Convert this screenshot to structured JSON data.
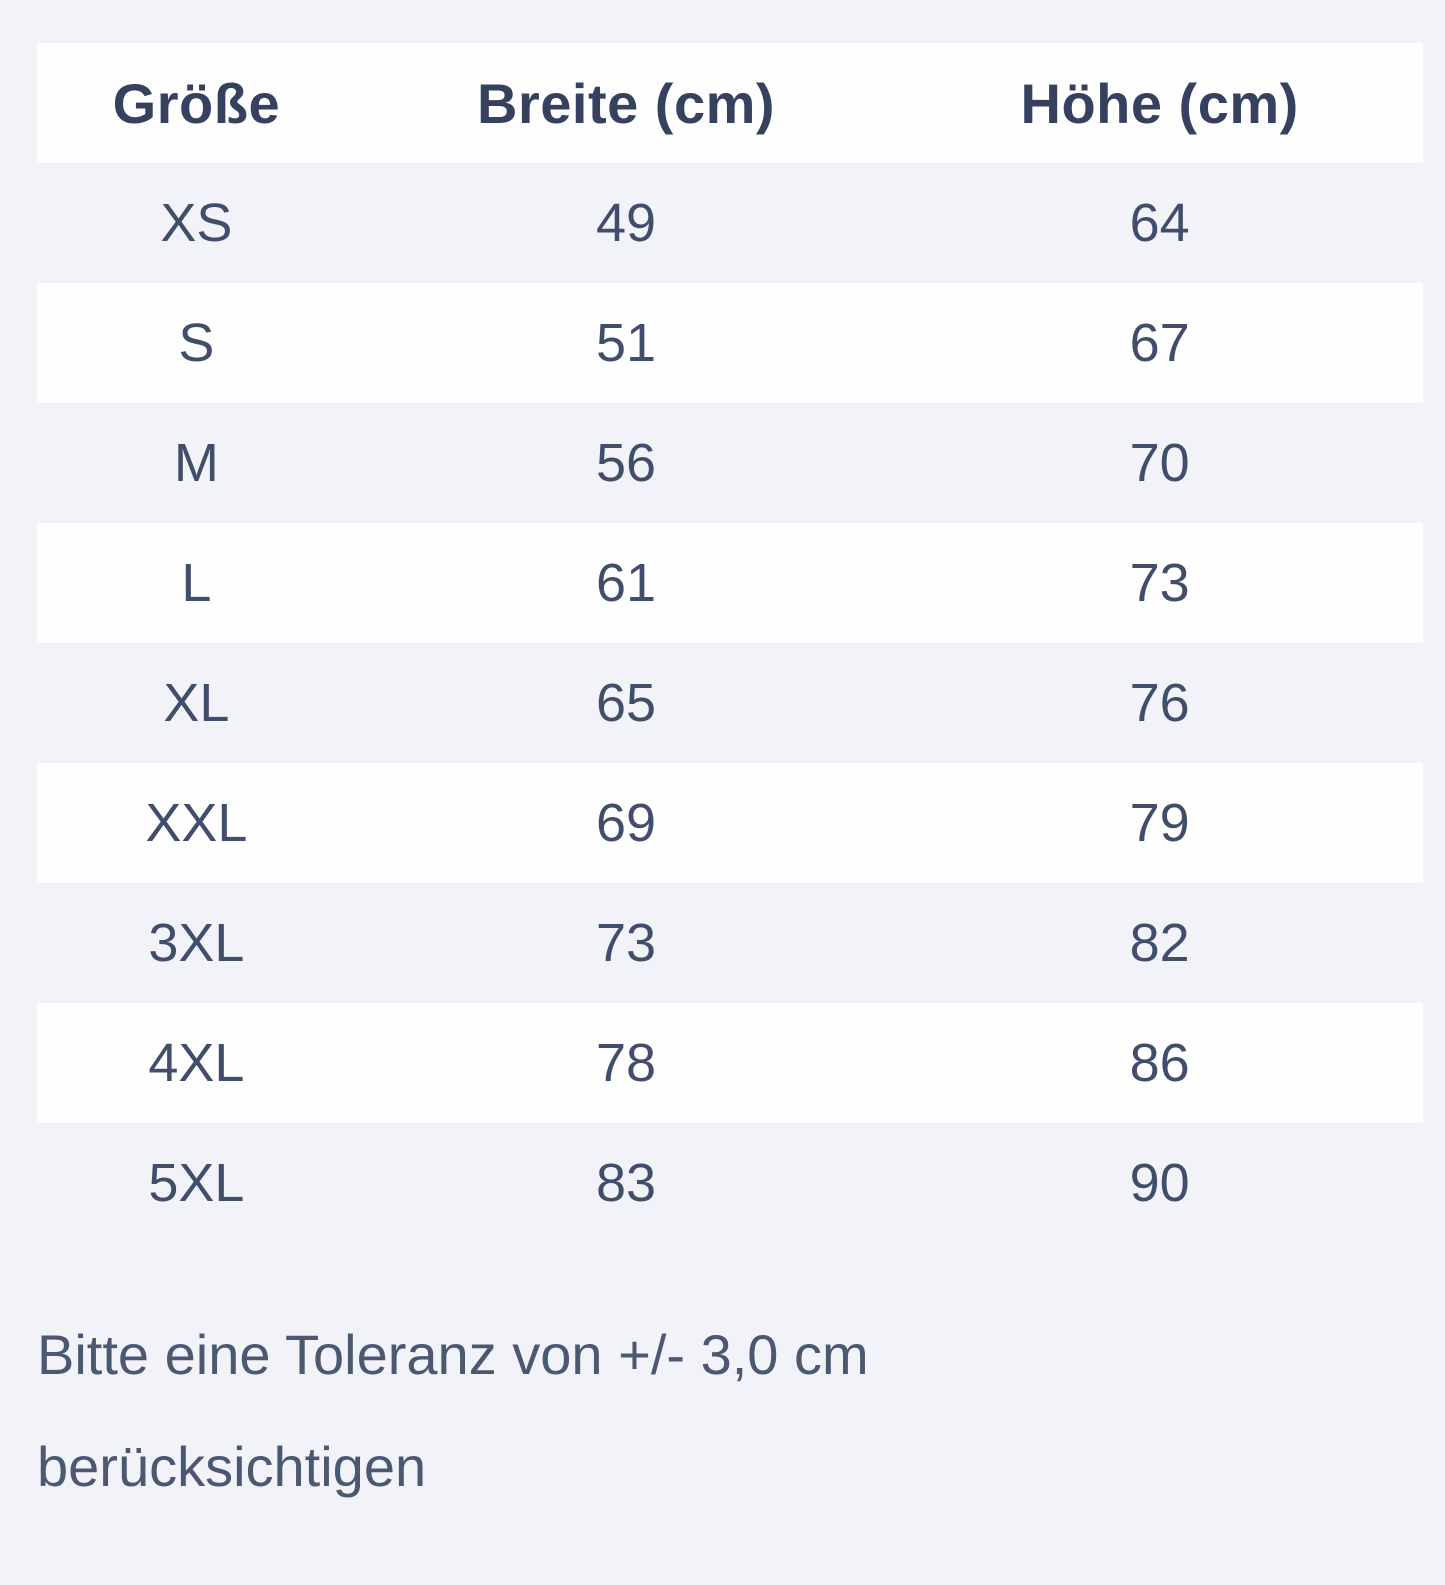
{
  "colors": {
    "page_bg": "#f1f3f8",
    "row_white": "#fefefe",
    "row_tint": "#f1f3f8",
    "header_text": "#36415f",
    "cell_text": "#414e6b",
    "note_text": "#4b5871"
  },
  "chart_data": {
    "type": "table",
    "title": "",
    "columns": [
      "Größe",
      "Breite (cm)",
      "Höhe (cm)"
    ],
    "rows": [
      [
        "XS",
        "49",
        "64"
      ],
      [
        "S",
        "51",
        "67"
      ],
      [
        "M",
        "56",
        "70"
      ],
      [
        "L",
        "61",
        "73"
      ],
      [
        "XL",
        "65",
        "76"
      ],
      [
        "XXL",
        "69",
        "79"
      ],
      [
        "3XL",
        "73",
        "82"
      ],
      [
        "4XL",
        "78",
        "86"
      ],
      [
        "5XL",
        "83",
        "90"
      ]
    ],
    "layout": {
      "header_background": "#fefefe",
      "alternating_rows": "odd rows match page background, even rows white",
      "text_alignment": "center"
    }
  },
  "note": {
    "lines": [
      "Bitte eine Toleranz von +/- 3,0 cm",
      "berücksichtigen"
    ]
  }
}
